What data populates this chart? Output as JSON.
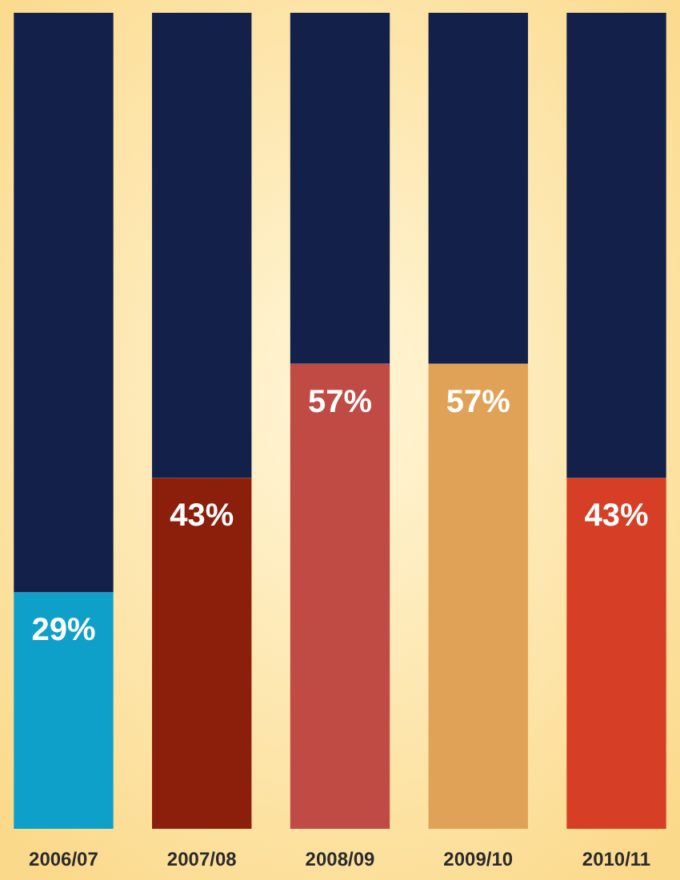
{
  "chart_data": {
    "type": "bar",
    "stacked": true,
    "categories": [
      "2006/07",
      "2007/08",
      "2008/09",
      "2009/10",
      "2010/11"
    ],
    "ylim": [
      0,
      100
    ],
    "tick_labels": "x",
    "series": [
      {
        "colors": [
          "#0ea0c8",
          "#8b1f0c",
          "#c04a44",
          "#e0a257",
          "#d63e26"
        ],
        "values": [
          29,
          43,
          57,
          57,
          43
        ],
        "value_labels": [
          "29%",
          "43%",
          "57%",
          "57%",
          "43%"
        ]
      },
      {
        "color": "#13204a",
        "values": [
          71,
          57,
          43,
          43,
          57
        ]
      }
    ]
  }
}
